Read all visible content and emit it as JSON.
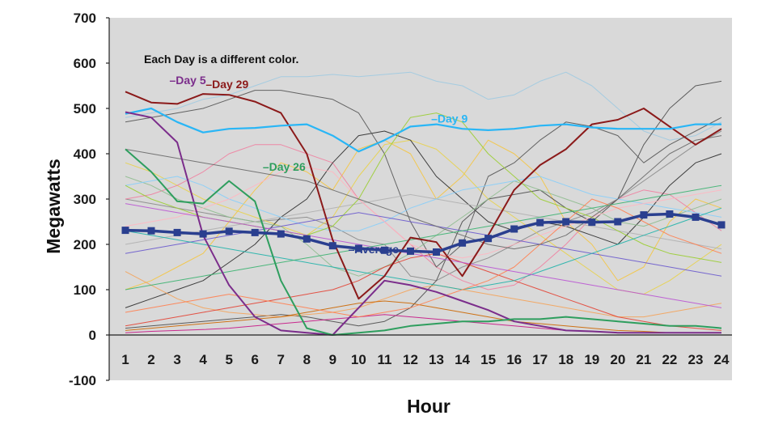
{
  "chart_data": {
    "type": "line",
    "title": "",
    "xlabel": "Hour",
    "ylabel": "Megawatts",
    "annotation": "Each Day is a different color.",
    "x": [
      1,
      2,
      3,
      4,
      5,
      6,
      7,
      8,
      9,
      10,
      11,
      12,
      13,
      14,
      15,
      16,
      17,
      18,
      19,
      20,
      21,
      22,
      23,
      24
    ],
    "x_tick_labels": [
      "1",
      "2",
      "3",
      "4",
      "5",
      "6",
      "7",
      "8",
      "9",
      "10",
      "11",
      "12",
      "13",
      "14",
      "15",
      "16",
      "17",
      "18",
      "19",
      "20",
      "21",
      "22",
      "23",
      "24"
    ],
    "ylim": [
      -100,
      700
    ],
    "y_ticks": [
      -100,
      0,
      100,
      200,
      300,
      400,
      500,
      600,
      700
    ],
    "y_tick_labels": [
      "-100",
      "0",
      "100",
      "200",
      "300",
      "400",
      "500",
      "600",
      "700"
    ],
    "grid": false,
    "plot_background": "#d9d9d9",
    "series": [
      {
        "name": "Day 29",
        "label": "–Day 29",
        "color": "#8b1a1a",
        "width": 2,
        "values": [
          537,
          513,
          510,
          532,
          530,
          515,
          490,
          400,
          210,
          80,
          130,
          215,
          205,
          130,
          220,
          320,
          375,
          410,
          465,
          475,
          500,
          460,
          420,
          455
        ]
      },
      {
        "name": "Day 9",
        "label": "–Day 9",
        "color": "#29b6f6",
        "width": 2.2,
        "values": [
          488,
          500,
          470,
          447,
          455,
          457,
          462,
          465,
          440,
          405,
          430,
          460,
          465,
          455,
          452,
          455,
          462,
          465,
          458,
          455,
          455,
          455,
          465,
          465
        ]
      },
      {
        "name": "Day 5",
        "label": "–Day 5",
        "color": "#7b2d8b",
        "width": 2,
        "values": [
          492,
          480,
          425,
          220,
          110,
          40,
          10,
          5,
          0,
          60,
          120,
          110,
          95,
          75,
          55,
          30,
          20,
          10,
          8,
          5,
          5,
          5,
          5,
          5
        ]
      },
      {
        "name": "Day 26",
        "label": "–Day 26",
        "color": "#2e9e5e",
        "width": 2,
        "values": [
          410,
          360,
          295,
          290,
          340,
          295,
          120,
          15,
          0,
          5,
          10,
          20,
          25,
          30,
          30,
          35,
          35,
          40,
          35,
          30,
          25,
          20,
          20,
          15
        ]
      },
      {
        "name": "Average",
        "label": "–Average",
        "color": "#2a3f8f",
        "width": 3.5,
        "markers": true,
        "values": [
          231,
          230,
          226,
          223,
          229,
          226,
          223,
          212,
          197,
          191,
          187,
          185,
          183,
          203,
          213,
          234,
          248,
          250,
          249,
          250,
          265,
          267,
          260,
          243
        ]
      }
    ],
    "background_series": [
      {
        "color": "#8a8a8a",
        "values": [
          300,
          290,
          280,
          270,
          260,
          250,
          255,
          260,
          240,
          210,
          200,
          130,
          120,
          150,
          170,
          200,
          230,
          250,
          270,
          300,
          340,
          380,
          420,
          450
        ]
      },
      {
        "color": "#9ecae1",
        "values": [
          480,
          490,
          500,
          520,
          530,
          550,
          570,
          570,
          575,
          570,
          575,
          580,
          560,
          550,
          520,
          530,
          560,
          580,
          550,
          500,
          450,
          430,
          440,
          470
        ]
      },
      {
        "color": "#f4c542",
        "values": [
          100,
          120,
          150,
          180,
          250,
          320,
          380,
          360,
          320,
          410,
          430,
          400,
          300,
          350,
          430,
          400,
          350,
          250,
          200,
          120,
          150,
          250,
          300,
          280
        ]
      },
      {
        "color": "#e8d14a",
        "values": [
          380,
          360,
          330,
          300,
          280,
          260,
          240,
          220,
          260,
          350,
          420,
          430,
          410,
          360,
          300,
          260,
          220,
          180,
          140,
          100,
          90,
          120,
          160,
          200
        ]
      },
      {
        "color": "#f080a0",
        "values": [
          300,
          310,
          330,
          360,
          400,
          420,
          420,
          400,
          380,
          300,
          250,
          200,
          150,
          120,
          100,
          110,
          150,
          200,
          260,
          300,
          320,
          310,
          270,
          230
        ]
      },
      {
        "color": "#2b2b2b",
        "values": [
          60,
          80,
          100,
          120,
          160,
          200,
          260,
          300,
          380,
          440,
          450,
          430,
          350,
          300,
          250,
          230,
          250,
          240,
          220,
          200,
          260,
          330,
          380,
          400
        ]
      },
      {
        "color": "#4d4d4d",
        "values": [
          15,
          20,
          25,
          30,
          35,
          40,
          45,
          40,
          30,
          20,
          30,
          60,
          120,
          250,
          300,
          310,
          320,
          280,
          250,
          300,
          420,
          500,
          550,
          560
        ]
      },
      {
        "color": "#555555",
        "values": [
          470,
          480,
          490,
          500,
          520,
          540,
          540,
          530,
          520,
          490,
          400,
          250,
          150,
          200,
          350,
          380,
          430,
          470,
          460,
          440,
          380,
          420,
          450,
          480
        ]
      },
      {
        "color": "#8fbc8f",
        "values": [
          350,
          330,
          300,
          280,
          260,
          250,
          240,
          200,
          150,
          130,
          150,
          180,
          220,
          260,
          300,
          340,
          320,
          300,
          280,
          250,
          240,
          260,
          280,
          300
        ]
      },
      {
        "color": "#f4a35a",
        "values": [
          140,
          110,
          80,
          60,
          50,
          45,
          40,
          45,
          50,
          60,
          80,
          100,
          110,
          100,
          90,
          80,
          70,
          60,
          50,
          40,
          40,
          50,
          60,
          70
        ]
      },
      {
        "color": "#e34234",
        "values": [
          20,
          30,
          40,
          50,
          60,
          70,
          80,
          90,
          100,
          120,
          150,
          170,
          180,
          160,
          140,
          120,
          100,
          80,
          60,
          40,
          30,
          20,
          15,
          10
        ]
      },
      {
        "color": "#b0b0b0",
        "values": [
          200,
          210,
          220,
          230,
          240,
          250,
          260,
          270,
          280,
          290,
          300,
          310,
          300,
          290,
          280,
          270,
          260,
          250,
          240,
          230,
          220,
          210,
          200,
          190
        ]
      },
      {
        "color": "#87cefa",
        "values": [
          330,
          340,
          350,
          330,
          300,
          280,
          260,
          240,
          230,
          230,
          250,
          280,
          300,
          320,
          330,
          340,
          350,
          330,
          310,
          300,
          290,
          280,
          270,
          260
        ]
      },
      {
        "color": "#ffb6c1",
        "values": [
          240,
          250,
          260,
          280,
          300,
          330,
          360,
          370,
          360,
          300,
          250,
          200,
          180,
          170,
          180,
          200,
          220,
          240,
          260,
          280,
          290,
          300,
          310,
          320
        ]
      },
      {
        "color": "#9acd32",
        "values": [
          330,
          300,
          280,
          260,
          250,
          240,
          230,
          220,
          240,
          300,
          400,
          480,
          490,
          470,
          400,
          350,
          300,
          280,
          260,
          230,
          200,
          180,
          170,
          160
        ]
      },
      {
        "color": "#cc6600",
        "values": [
          10,
          15,
          20,
          25,
          30,
          35,
          40,
          50,
          60,
          70,
          75,
          70,
          60,
          50,
          40,
          30,
          25,
          20,
          15,
          10,
          8,
          5,
          5,
          5
        ]
      },
      {
        "color": "#c71585",
        "values": [
          5,
          8,
          10,
          12,
          15,
          20,
          25,
          30,
          35,
          40,
          45,
          40,
          35,
          30,
          25,
          20,
          15,
          10,
          8,
          5,
          5,
          5,
          5,
          5
        ]
      },
      {
        "color": "#6a5acd",
        "values": [
          180,
          190,
          200,
          210,
          220,
          230,
          240,
          250,
          260,
          270,
          260,
          250,
          240,
          230,
          220,
          210,
          200,
          190,
          180,
          170,
          160,
          150,
          140,
          130
        ]
      },
      {
        "color": "#20b2aa",
        "values": [
          230,
          220,
          210,
          200,
          190,
          180,
          170,
          160,
          150,
          140,
          130,
          120,
          110,
          100,
          110,
          120,
          140,
          160,
          180,
          200,
          220,
          240,
          260,
          280
        ]
      },
      {
        "color": "#ff7f50",
        "values": [
          50,
          60,
          70,
          80,
          90,
          80,
          70,
          60,
          50,
          40,
          50,
          60,
          80,
          100,
          120,
          150,
          200,
          250,
          300,
          280,
          250,
          220,
          200,
          180
        ]
      },
      {
        "color": "#696969",
        "values": [
          410,
          400,
          390,
          380,
          370,
          360,
          350,
          340,
          320,
          300,
          280,
          260,
          240,
          220,
          200,
          190,
          200,
          220,
          260,
          300,
          350,
          400,
          430,
          440
        ]
      },
      {
        "color": "#ba55d3",
        "values": [
          290,
          280,
          270,
          260,
          250,
          240,
          230,
          220,
          210,
          200,
          190,
          180,
          170,
          160,
          150,
          140,
          130,
          120,
          110,
          100,
          90,
          80,
          70,
          60
        ]
      },
      {
        "color": "#3cb371",
        "values": [
          100,
          110,
          120,
          130,
          140,
          150,
          160,
          170,
          180,
          190,
          200,
          210,
          220,
          230,
          240,
          250,
          260,
          270,
          280,
          290,
          300,
          310,
          320,
          330
        ]
      }
    ]
  }
}
